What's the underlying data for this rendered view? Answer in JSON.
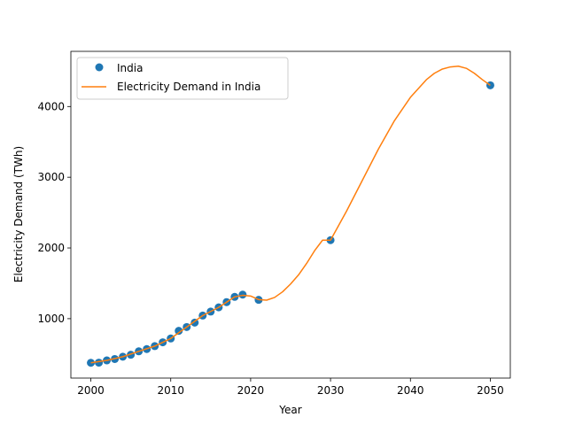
{
  "chart_data": {
    "type": "scatter",
    "title": "",
    "xlabel": "Year",
    "ylabel": "Electricity Demand (TWh)",
    "xlim": [
      1997.5,
      2052.5
    ],
    "ylim": [
      160,
      4780
    ],
    "x_ticks": [
      2000,
      2010,
      2020,
      2030,
      2040,
      2050
    ],
    "y_ticks": [
      1000,
      2000,
      3000,
      4000
    ],
    "grid": false,
    "legend_position": "upper left",
    "legend": [
      "India",
      "Electricity Demand in India"
    ],
    "series": [
      {
        "name": "India",
        "kind": "points",
        "color": "#1f77b4",
        "x": [
          2000,
          2001,
          2002,
          2003,
          2004,
          2005,
          2006,
          2007,
          2008,
          2009,
          2010,
          2011,
          2012,
          2013,
          2014,
          2015,
          2016,
          2017,
          2018,
          2019,
          2021,
          2030,
          2050
        ],
        "y": [
          376,
          378,
          410,
          430,
          462,
          490,
          538,
          570,
          612,
          666,
          720,
          828,
          882,
          944,
          1044,
          1100,
          1160,
          1234,
          1308,
          1340,
          1266,
          2110,
          4300
        ]
      },
      {
        "name": "Electricity Demand in India",
        "kind": "line",
        "color": "#ff7f0e",
        "x": [
          2000,
          2002,
          2004,
          2006,
          2008,
          2010,
          2012,
          2014,
          2016,
          2018,
          2019,
          2020,
          2021,
          2022,
          2023,
          2024,
          2025,
          2026,
          2027,
          2028,
          2029,
          2030,
          2032,
          2034,
          2036,
          2038,
          2040,
          2042,
          2043,
          2044,
          2045,
          2046,
          2047,
          2048,
          2049,
          2050
        ],
        "y": [
          376,
          410,
          462,
          538,
          612,
          720,
          882,
          1044,
          1160,
          1308,
          1330,
          1320,
          1270,
          1262,
          1300,
          1380,
          1490,
          1620,
          1780,
          1960,
          2110,
          2110,
          2520,
          2960,
          3400,
          3800,
          4130,
          4380,
          4470,
          4530,
          4560,
          4570,
          4540,
          4470,
          4380,
          4300
        ]
      }
    ]
  }
}
